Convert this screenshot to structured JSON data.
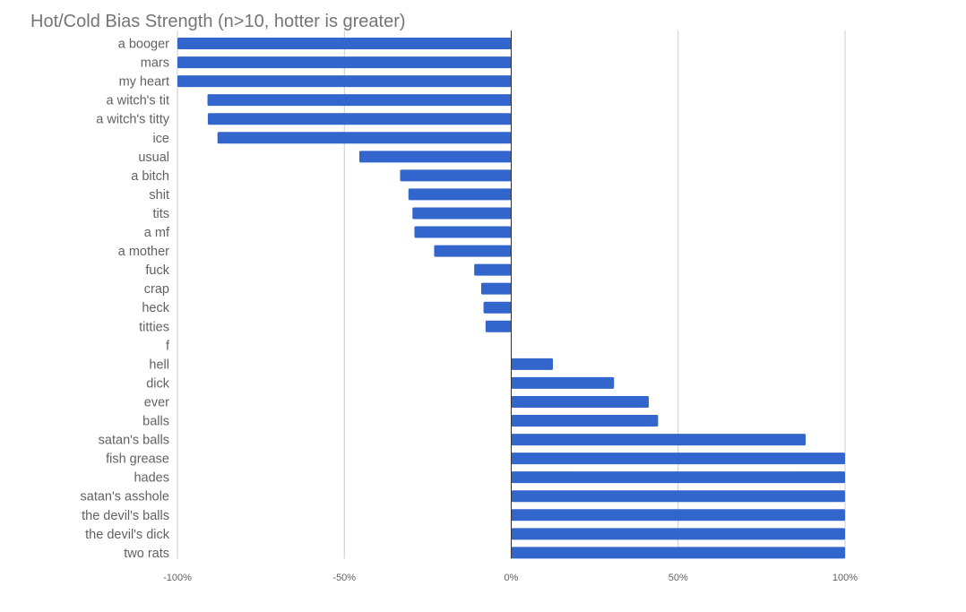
{
  "chart_data": {
    "type": "bar",
    "orientation": "horizontal",
    "title": "Hot/Cold Bias Strength (n>10, hotter is greater)",
    "xlabel": "",
    "ylabel": "",
    "xlim": [
      -1,
      1
    ],
    "ticks": [
      -1,
      -0.5,
      0,
      0.5,
      1
    ],
    "tick_labels": [
      "-100%",
      "-50%",
      "0%",
      "50%",
      "100%"
    ],
    "grid": true,
    "legend": "none",
    "color": "#3366cc",
    "categories": [
      "a booger",
      "mars",
      "my heart",
      "a witch's tit",
      "a witch's titty",
      "ice",
      "usual",
      "a bitch",
      "shit",
      "tits",
      "a mf",
      "a mother",
      "fuck",
      "crap",
      "heck",
      "titties",
      "f",
      "hell",
      "dick",
      "ever",
      "balls",
      "satan's balls",
      "fish grease",
      "hades",
      "satan's asshole",
      "the devil's balls",
      "the devil's dick",
      "two rats"
    ],
    "values": [
      -1.0,
      -1.0,
      -1.0,
      -0.91,
      -0.909,
      -0.88,
      -0.455,
      -0.333,
      -0.308,
      -0.296,
      -0.29,
      -0.231,
      -0.111,
      -0.09,
      -0.083,
      -0.077,
      0.0,
      0.125,
      0.308,
      0.412,
      0.44,
      0.882,
      1.0,
      1.0,
      1.0,
      1.0,
      1.0,
      1.0
    ]
  }
}
